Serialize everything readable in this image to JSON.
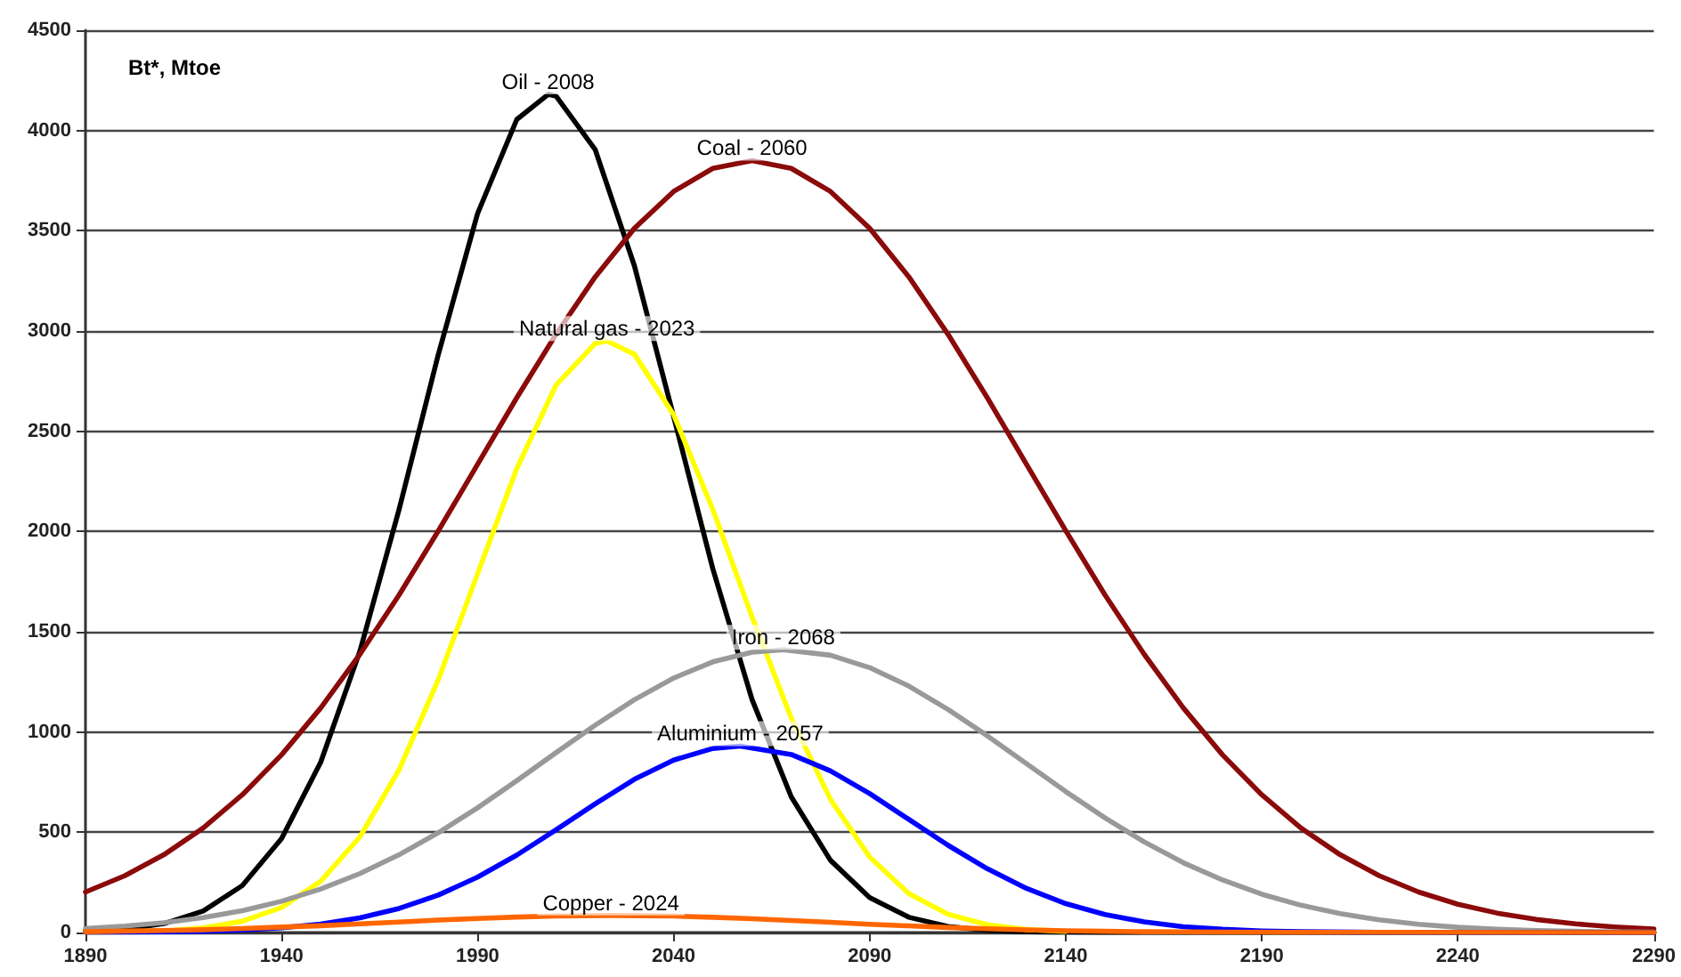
{
  "chart_data": {
    "type": "line",
    "ylabel": "Bt*, Mtoe",
    "xlim": [
      1890,
      2290
    ],
    "xticks": [
      1890,
      1940,
      1990,
      2040,
      2090,
      2140,
      2190,
      2240,
      2290
    ],
    "ylim": [
      0,
      4500
    ],
    "yticks": [
      0,
      500,
      1000,
      1500,
      2000,
      2500,
      3000,
      3500,
      4000,
      4500
    ],
    "grid": "y",
    "marker": "none",
    "line_style": "solid",
    "series": [
      {
        "name": "Oil - 2008",
        "color": "#000000",
        "x": [
          1890,
          1900,
          1910,
          1920,
          1930,
          1940,
          1950,
          1960,
          1970,
          1980,
          1990,
          2000,
          2008,
          2010,
          2020,
          2030,
          2040,
          2050,
          2060,
          2070,
          2080,
          2090,
          2100,
          2110,
          2120,
          2130,
          2150,
          2290
        ],
        "values": [
          6,
          17,
          44,
          107,
          234,
          468,
          850,
          1404,
          2111,
          2884,
          3586,
          4055,
          4180,
          4172,
          3905,
          3325,
          2574,
          1814,
          1162,
          677,
          360,
          174,
          76,
          30,
          11,
          3,
          0,
          0
        ]
      },
      {
        "name": "Coal - 2060",
        "color": "#8b0a0a",
        "x": [
          1890,
          1900,
          1910,
          1920,
          1930,
          1940,
          1950,
          1960,
          1970,
          1980,
          1990,
          2000,
          2010,
          2020,
          2030,
          2040,
          2050,
          2060,
          2070,
          2080,
          2090,
          2100,
          2110,
          2120,
          2130,
          2140,
          2150,
          2160,
          2170,
          2180,
          2190,
          2200,
          2210,
          2220,
          2230,
          2240,
          2250,
          2260,
          2270,
          2280,
          2290
        ],
        "values": [
          202,
          283,
          388,
          521,
          687,
          886,
          1120,
          1388,
          1684,
          2004,
          2335,
          2667,
          2983,
          3270,
          3512,
          3696,
          3811,
          3850,
          3811,
          3696,
          3512,
          3270,
          2983,
          2667,
          2335,
          2004,
          1684,
          1388,
          1120,
          886,
          687,
          521,
          388,
          283,
          202,
          141,
          97,
          65,
          43,
          28,
          17
        ]
      },
      {
        "name": "Natural gas - 2023",
        "color": "#ffff00",
        "x": [
          1890,
          1900,
          1910,
          1920,
          1930,
          1940,
          1950,
          1960,
          1970,
          1980,
          1990,
          2000,
          2010,
          2020,
          2023,
          2030,
          2040,
          2050,
          2060,
          2070,
          2080,
          2090,
          2100,
          2110,
          2120,
          2130,
          2140
        ],
        "values": [
          1,
          3,
          8,
          23,
          56,
          125,
          256,
          477,
          812,
          1262,
          1789,
          2314,
          2730,
          2938,
          2950,
          2884,
          2583,
          2110,
          1574,
          1070,
          664,
          376,
          194,
          91,
          39,
          15,
          6
        ]
      },
      {
        "name": "Iron - 2068",
        "color": "#999999",
        "x": [
          1890,
          1900,
          1910,
          1920,
          1930,
          1940,
          1950,
          1960,
          1970,
          1980,
          1990,
          2000,
          2010,
          2020,
          2030,
          2040,
          2050,
          2060,
          2068,
          2080,
          2090,
          2100,
          2110,
          2120,
          2130,
          2140,
          2150,
          2160,
          2170,
          2180,
          2190,
          2200,
          2210,
          2220,
          2230,
          2240,
          2250,
          2260,
          2270,
          2280,
          2290
        ],
        "values": [
          20,
          32,
          49,
          74,
          109,
          156,
          217,
          294,
          388,
          498,
          622,
          757,
          897,
          1034,
          1161,
          1269,
          1350,
          1398,
          1410,
          1383,
          1321,
          1229,
          1112,
          981,
          842,
          703,
          572,
          452,
          348,
          262,
          191,
          136,
          94,
          63,
          41,
          26,
          16,
          10,
          6,
          3,
          2
        ]
      },
      {
        "name": "Aluminium - 2057",
        "color": "#0000ff",
        "x": [
          1890,
          1900,
          1910,
          1920,
          1930,
          1940,
          1950,
          1960,
          1970,
          1980,
          1990,
          2000,
          2010,
          2020,
          2030,
          2040,
          2050,
          2057,
          2070,
          2080,
          2090,
          2100,
          2110,
          2120,
          2130,
          2140,
          2150,
          2160,
          2170,
          2180,
          2190,
          2200,
          2220,
          2290
        ],
        "values": [
          1,
          2,
          4,
          6,
          12,
          23,
          42,
          73,
          120,
          187,
          276,
          386,
          512,
          642,
          764,
          860,
          918,
          930,
          888,
          806,
          693,
          564,
          435,
          318,
          220,
          144,
          90,
          53,
          29,
          16,
          8,
          4,
          1,
          0
        ]
      },
      {
        "name": "Copper - 2024",
        "color": "#ff6600",
        "x": [
          1890,
          1900,
          1910,
          1920,
          1930,
          1940,
          1950,
          1960,
          1970,
          1980,
          1990,
          2000,
          2010,
          2024,
          2040,
          2050,
          2060,
          2070,
          2080,
          2090,
          2100,
          2110,
          2120,
          2130,
          2140,
          2150,
          2160,
          2170,
          2180,
          2200,
          2290
        ],
        "values": [
          4,
          7,
          10,
          14,
          20,
          27,
          34,
          43,
          52,
          62,
          70,
          77,
          82,
          85,
          82,
          76,
          69,
          60,
          51,
          41,
          33,
          25,
          19,
          13,
          9,
          6,
          4,
          3,
          2,
          1,
          0
        ]
      }
    ]
  }
}
